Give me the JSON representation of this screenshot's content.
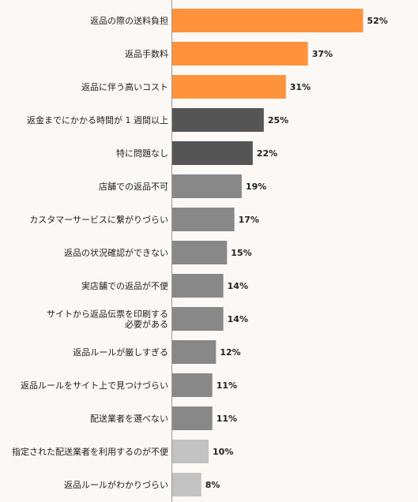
{
  "chart_data": {
    "type": "bar",
    "orientation": "horizontal",
    "categories": [
      "返品の際の送料負担",
      "返品手数料",
      "返品に伴う高いコスト",
      "返金までにかかる時間が 1 週間以上",
      "特に問題なし",
      "店舗での返品不可",
      "カスタマーサービスに繋がりづらい",
      "返品の状況確認ができない",
      "実店舗での返品が不便",
      "サイトから返品伝票を印刷する\n必要がある",
      "返品ルールが厳しすぎる",
      "返品ルールをサイト上で見つけづらい",
      "配送業者を選べない",
      "指定された配送業者を利用するのが不便",
      "返品ルールがわかりづらい"
    ],
    "values": [
      52,
      37,
      31,
      25,
      22,
      19,
      17,
      15,
      14,
      14,
      12,
      11,
      11,
      10,
      8
    ],
    "value_labels": [
      "52%",
      "37%",
      "31%",
      "25%",
      "22%",
      "19%",
      "17%",
      "15%",
      "14%",
      "14%",
      "12%",
      "11%",
      "11%",
      "10%",
      "8%"
    ],
    "bar_colors": [
      "#ff923b",
      "#ff923b",
      "#ff923b",
      "#555555",
      "#555555",
      "#888888",
      "#888888",
      "#888888",
      "#888888",
      "#888888",
      "#888888",
      "#888888",
      "#888888",
      "#c2c2c2",
      "#c2c2c2"
    ],
    "axis_color": "#999999",
    "xlim": [
      0,
      60
    ],
    "title": "",
    "xlabel": "",
    "ylabel": "",
    "grid": false,
    "legend": "none"
  }
}
